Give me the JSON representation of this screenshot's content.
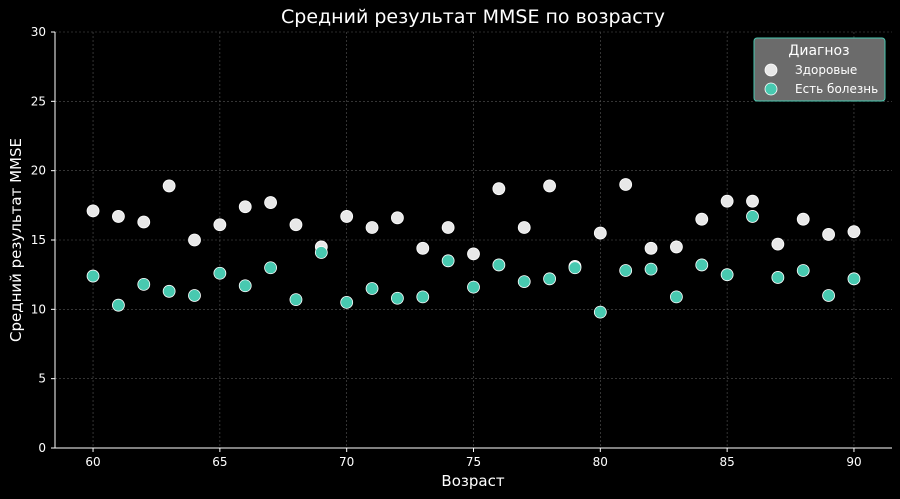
{
  "chart_data": {
    "type": "scatter",
    "title": "Средний результат MMSE по возрасту",
    "xlabel": "Возраст",
    "ylabel": "Средний результат MMSE",
    "xlim": [
      58.5,
      91.5
    ],
    "ylim": [
      0,
      30
    ],
    "xticks": [
      60,
      65,
      70,
      75,
      80,
      85,
      90
    ],
    "yticks": [
      0,
      5,
      10,
      15,
      20,
      25,
      30
    ],
    "grid": true,
    "legend": {
      "title": "Диагноз",
      "position": "top-right"
    },
    "series": [
      {
        "name": "Здоровые",
        "color": "#e8e8e8",
        "x": [
          60,
          61,
          62,
          63,
          64,
          65,
          66,
          67,
          68,
          69,
          70,
          71,
          72,
          73,
          74,
          75,
          76,
          77,
          78,
          79,
          80,
          81,
          82,
          83,
          84,
          85,
          86,
          87,
          88,
          89,
          90
        ],
        "y": [
          17.1,
          16.7,
          16.3,
          18.9,
          15.0,
          16.1,
          17.4,
          17.7,
          16.1,
          14.5,
          16.7,
          15.9,
          16.6,
          14.4,
          15.9,
          14.0,
          18.7,
          15.9,
          18.9,
          13.1,
          15.5,
          19.0,
          14.4,
          14.5,
          16.5,
          17.8,
          17.8,
          14.7,
          16.5,
          15.4,
          15.6
        ]
      },
      {
        "name": "Есть болезнь",
        "color": "#48c9b0",
        "x": [
          60,
          61,
          62,
          63,
          64,
          65,
          66,
          67,
          68,
          69,
          70,
          71,
          72,
          73,
          74,
          75,
          76,
          77,
          78,
          79,
          80,
          81,
          82,
          83,
          84,
          85,
          86,
          87,
          88,
          89,
          90
        ],
        "y": [
          12.4,
          10.3,
          11.8,
          11.3,
          11.0,
          12.6,
          11.7,
          13.0,
          10.7,
          14.1,
          10.5,
          11.5,
          10.8,
          10.9,
          13.5,
          11.6,
          13.2,
          12.0,
          12.2,
          13.0,
          9.8,
          12.8,
          12.9,
          10.9,
          13.2,
          12.5,
          16.7,
          12.3,
          12.8,
          11.0,
          12.2
        ]
      }
    ]
  }
}
